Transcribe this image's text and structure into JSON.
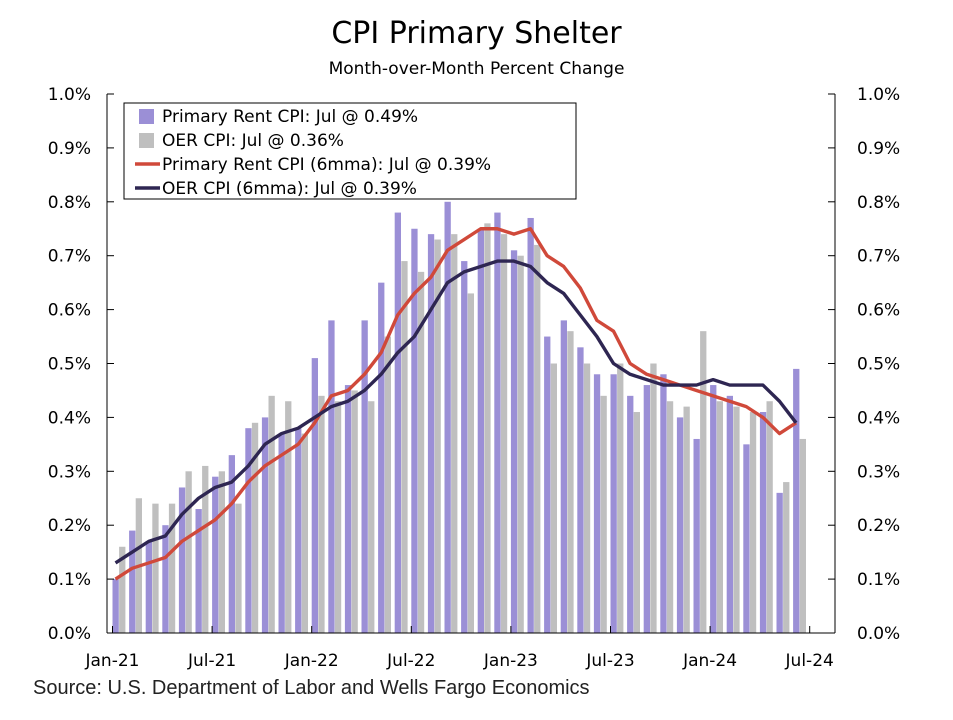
{
  "chart_data": {
    "type": "bar",
    "title": "CPI Primary Shelter",
    "subtitle": "Month-over-Month Percent Change",
    "source": "Source: U.S. Department of Labor and Wells Fargo Economics",
    "ylim": [
      0,
      1.0
    ],
    "y_ticks": [
      "0.0%",
      "0.1%",
      "0.2%",
      "0.3%",
      "0.4%",
      "0.5%",
      "0.6%",
      "0.7%",
      "0.8%",
      "0.9%",
      "1.0%"
    ],
    "y_tick_values": [
      0,
      0.1,
      0.2,
      0.3,
      0.4,
      0.5,
      0.6,
      0.7,
      0.8,
      0.9,
      1.0
    ],
    "x_tick_labels": [
      {
        "index": 0,
        "label": "Jan-21"
      },
      {
        "index": 6,
        "label": "Jul-21"
      },
      {
        "index": 12,
        "label": "Jan-22"
      },
      {
        "index": 18,
        "label": "Jul-22"
      },
      {
        "index": 24,
        "label": "Jan-23"
      },
      {
        "index": 30,
        "label": "Jul-23"
      },
      {
        "index": 36,
        "label": "Jan-24"
      },
      {
        "index": 42,
        "label": "Jul-24"
      }
    ],
    "grid": false,
    "legend_position": "top-left",
    "series": [
      {
        "name": "Primary Rent CPI: Jul @ 0.49%",
        "kind": "bar",
        "color": "#9b8fd6",
        "values": [
          0.1,
          0.19,
          0.17,
          0.2,
          0.27,
          0.23,
          0.29,
          0.33,
          0.38,
          0.4,
          0.37,
          0.38,
          0.51,
          0.58,
          0.46,
          0.58,
          0.65,
          0.78,
          0.75,
          0.74,
          0.8,
          0.69,
          0.75,
          0.78,
          0.71,
          0.77,
          0.55,
          0.58,
          0.53,
          0.48,
          0.48,
          0.44,
          0.46,
          0.48,
          0.4,
          0.36,
          0.46,
          0.44,
          0.35,
          0.41,
          0.26,
          0.49
        ]
      },
      {
        "name": "OER CPI: Jul @ 0.36%",
        "kind": "bar",
        "color": "#bfbfbf",
        "values": [
          0.16,
          0.25,
          0.24,
          0.24,
          0.3,
          0.31,
          0.3,
          0.24,
          0.39,
          0.44,
          0.43,
          0.37,
          0.44,
          0.43,
          0.45,
          0.43,
          0.55,
          0.69,
          0.67,
          0.73,
          0.74,
          0.63,
          0.76,
          0.74,
          0.7,
          0.72,
          0.5,
          0.56,
          0.5,
          0.44,
          0.5,
          0.41,
          0.5,
          0.43,
          0.42,
          0.56,
          0.43,
          0.42,
          0.41,
          0.43,
          0.28,
          0.36
        ]
      },
      {
        "name": "Primary Rent CPI (6mma): Jul @ 0.39%",
        "kind": "line",
        "color": "#d0493a",
        "values": [
          0.1,
          0.12,
          0.13,
          0.14,
          0.17,
          0.19,
          0.21,
          0.24,
          0.28,
          0.31,
          0.33,
          0.35,
          0.39,
          0.44,
          0.45,
          0.48,
          0.52,
          0.59,
          0.63,
          0.66,
          0.71,
          0.73,
          0.75,
          0.75,
          0.74,
          0.75,
          0.7,
          0.68,
          0.64,
          0.58,
          0.56,
          0.5,
          0.48,
          0.47,
          0.46,
          0.45,
          0.44,
          0.43,
          0.42,
          0.4,
          0.37,
          0.39
        ]
      },
      {
        "name": "OER CPI (6mma): Jul @ 0.39%",
        "kind": "line",
        "color": "#2e2652",
        "values": [
          0.13,
          0.15,
          0.17,
          0.18,
          0.22,
          0.25,
          0.27,
          0.28,
          0.31,
          0.35,
          0.37,
          0.38,
          0.4,
          0.42,
          0.43,
          0.45,
          0.48,
          0.52,
          0.55,
          0.6,
          0.65,
          0.67,
          0.68,
          0.69,
          0.69,
          0.68,
          0.65,
          0.63,
          0.59,
          0.55,
          0.5,
          0.48,
          0.47,
          0.46,
          0.46,
          0.46,
          0.47,
          0.46,
          0.46,
          0.46,
          0.43,
          0.39
        ]
      }
    ]
  }
}
